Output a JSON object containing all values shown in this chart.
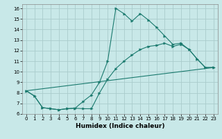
{
  "title": "",
  "xlabel": "Humidex (Indice chaleur)",
  "bg_color": "#c8e8e8",
  "grid_color": "#aacccc",
  "line_color": "#1a7a6e",
  "xlim": [
    -0.5,
    23.5
  ],
  "ylim": [
    6.0,
    16.4
  ],
  "xticks": [
    0,
    1,
    2,
    3,
    4,
    5,
    6,
    7,
    8,
    9,
    10,
    11,
    12,
    13,
    14,
    15,
    16,
    17,
    18,
    19,
    20,
    21,
    22,
    23
  ],
  "yticks": [
    6,
    7,
    8,
    9,
    10,
    11,
    12,
    13,
    14,
    15,
    16
  ],
  "line1_x": [
    0,
    1,
    2,
    3,
    4,
    5,
    6,
    7,
    8,
    9,
    10,
    11,
    12,
    13,
    14,
    15,
    16,
    17,
    18,
    19,
    20,
    21,
    22,
    23
  ],
  "line1_y": [
    8.2,
    7.7,
    6.6,
    6.5,
    6.4,
    6.5,
    6.55,
    7.2,
    7.8,
    9.0,
    11.0,
    16.0,
    15.5,
    14.8,
    15.5,
    14.9,
    14.2,
    13.4,
    12.6,
    12.7,
    12.1,
    11.2,
    10.4,
    10.4
  ],
  "line2_x": [
    0,
    1,
    2,
    3,
    4,
    5,
    6,
    7,
    8,
    9,
    10,
    11,
    12,
    13,
    14,
    15,
    16,
    17,
    18,
    19,
    20,
    21,
    22,
    23
  ],
  "line2_y": [
    8.2,
    7.7,
    6.6,
    6.5,
    6.4,
    6.5,
    6.55,
    6.5,
    6.5,
    8.0,
    9.3,
    10.3,
    11.0,
    11.6,
    12.1,
    12.4,
    12.5,
    12.7,
    12.4,
    12.6,
    12.1,
    11.2,
    10.4,
    10.4
  ],
  "line3_x": [
    0,
    23
  ],
  "line3_y": [
    8.2,
    10.4
  ],
  "tick_fontsize": 5.0,
  "xlabel_fontsize": 6.5,
  "marker_size": 2.5,
  "line_width": 0.8
}
